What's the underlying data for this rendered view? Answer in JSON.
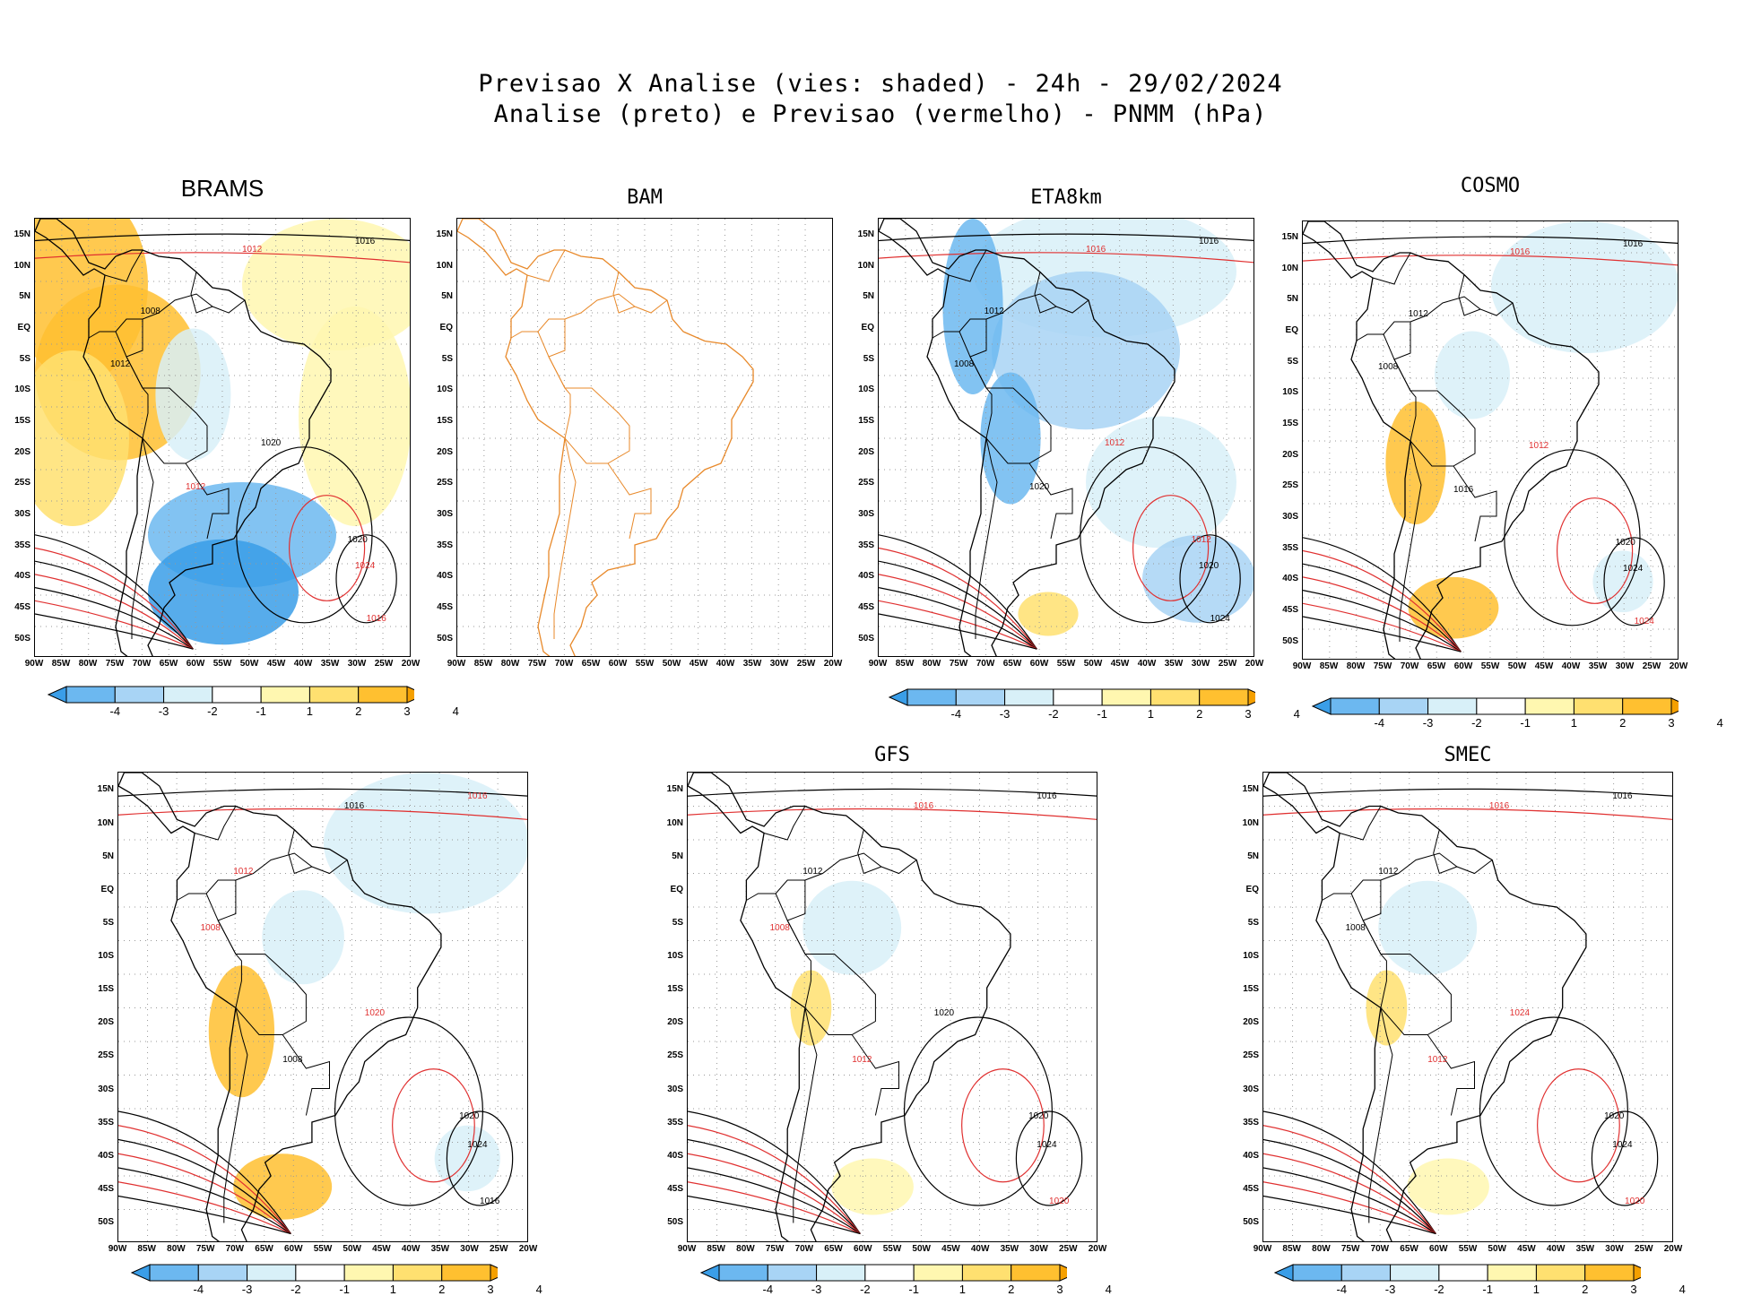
{
  "header": {
    "line1": "Previsao X Analise (vies: shaded) - 24h - 29/02/2024",
    "line2": "Analise (preto) e Previsao (vermelho) - PNMM (hPa)"
  },
  "lat_labels": [
    "15N",
    "10N",
    "5N",
    "EQ",
    "5S",
    "10S",
    "15S",
    "20S",
    "25S",
    "30S",
    "35S",
    "40S",
    "45S",
    "50S"
  ],
  "lon_labels": [
    "90W",
    "85W",
    "80W",
    "75W",
    "70W",
    "65W",
    "60W",
    "55W",
    "50W",
    "45W",
    "40W",
    "35W",
    "30W",
    "25W",
    "20W"
  ],
  "colorbar": {
    "labels": [
      "-4",
      "-3",
      "-2",
      "-1",
      "1",
      "2",
      "3",
      "4"
    ],
    "colors": [
      "#3a9ee8",
      "#6cb8f0",
      "#a8d4f5",
      "#d8f0f8",
      "#ffffff",
      "#fff7b0",
      "#ffe070",
      "#ffc030",
      "#f5a000"
    ]
  },
  "colors": {
    "analysis": "#000000",
    "forecast": "#e03030",
    "coastline_bam": "#e8892a",
    "grid": "#999999"
  },
  "panels": [
    {
      "id": "brams",
      "title": "BRAMS",
      "bias": "warm",
      "iso": [
        {
          "label": "1012",
          "color": "forecast"
        },
        {
          "label": "1016",
          "color": "analysis"
        },
        {
          "label": "1008",
          "color": "analysis"
        },
        {
          "label": "1012",
          "color": "analysis"
        },
        {
          "label": "1020",
          "color": "analysis"
        },
        {
          "label": "1024",
          "color": "forecast"
        },
        {
          "label": "1016",
          "color": "forecast"
        },
        {
          "label": "1012",
          "color": "forecast"
        },
        {
          "label": "1020",
          "color": "analysis"
        }
      ]
    },
    {
      "id": "bam",
      "title": "BAM",
      "bias": "none",
      "iso": []
    },
    {
      "id": "eta8km",
      "title": "ETA8km",
      "bias": "cool",
      "iso": [
        {
          "label": "1016",
          "color": "forecast"
        },
        {
          "label": "1016",
          "color": "analysis"
        },
        {
          "label": "1012",
          "color": "analysis"
        },
        {
          "label": "1008",
          "color": "analysis"
        },
        {
          "label": "1012",
          "color": "forecast"
        },
        {
          "label": "1020",
          "color": "analysis"
        },
        {
          "label": "1024",
          "color": "analysis"
        },
        {
          "label": "1020",
          "color": "analysis"
        },
        {
          "label": "1012",
          "color": "forecast"
        }
      ]
    },
    {
      "id": "cosmo",
      "title": "COSMO",
      "bias": "mixed",
      "iso": [
        {
          "label": "1016",
          "color": "forecast"
        },
        {
          "label": "1016",
          "color": "analysis"
        },
        {
          "label": "1012",
          "color": "analysis"
        },
        {
          "label": "1008",
          "color": "analysis"
        },
        {
          "label": "1020",
          "color": "analysis"
        },
        {
          "label": "1024",
          "color": "analysis"
        },
        {
          "label": "1024",
          "color": "forecast"
        },
        {
          "label": "1016",
          "color": "analysis"
        },
        {
          "label": "1012",
          "color": "forecast"
        }
      ]
    },
    {
      "id": "wrf",
      "title": "",
      "bias": "mixed",
      "iso": [
        {
          "label": "1016",
          "color": "analysis"
        },
        {
          "label": "1016",
          "color": "forecast"
        },
        {
          "label": "1012",
          "color": "forecast"
        },
        {
          "label": "1008",
          "color": "forecast"
        },
        {
          "label": "1020",
          "color": "analysis"
        },
        {
          "label": "1024",
          "color": "analysis"
        },
        {
          "label": "1016",
          "color": "analysis"
        },
        {
          "label": "1008",
          "color": "analysis"
        },
        {
          "label": "1020",
          "color": "forecast"
        }
      ]
    },
    {
      "id": "gfs",
      "title": "GFS",
      "bias": "slight",
      "iso": [
        {
          "label": "1016",
          "color": "forecast"
        },
        {
          "label": "1016",
          "color": "analysis"
        },
        {
          "label": "1012",
          "color": "analysis"
        },
        {
          "label": "1008",
          "color": "forecast"
        },
        {
          "label": "1020",
          "color": "analysis"
        },
        {
          "label": "1024",
          "color": "analysis"
        },
        {
          "label": "1020",
          "color": "forecast"
        },
        {
          "label": "1012",
          "color": "forecast"
        },
        {
          "label": "1020",
          "color": "analysis"
        }
      ]
    },
    {
      "id": "smec",
      "title": "SMEC",
      "bias": "slight",
      "iso": [
        {
          "label": "1016",
          "color": "forecast"
        },
        {
          "label": "1016",
          "color": "analysis"
        },
        {
          "label": "1012",
          "color": "analysis"
        },
        {
          "label": "1008",
          "color": "analysis"
        },
        {
          "label": "1020",
          "color": "analysis"
        },
        {
          "label": "1024",
          "color": "analysis"
        },
        {
          "label": "1020",
          "color": "forecast"
        },
        {
          "label": "1012",
          "color": "forecast"
        },
        {
          "label": "1024",
          "color": "forecast"
        }
      ]
    }
  ]
}
